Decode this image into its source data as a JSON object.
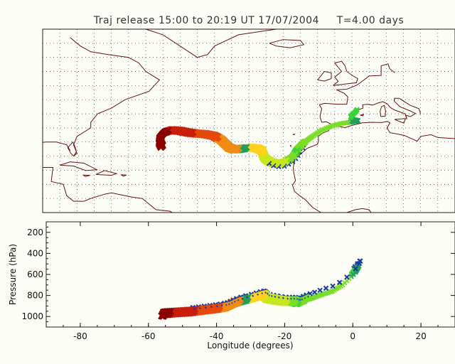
{
  "title": "Traj release 15:00 to 20:19 UT 17/07/2004     T=4.00 days",
  "colors": {
    "frame": "#2a1a1a",
    "grid": "#555555",
    "coast": "#6a1010",
    "cross": "#1a3aa0",
    "background": "#fcfdf6"
  },
  "map": {
    "lon_range": [
      -90,
      30
    ],
    "lat_range": [
      5,
      70
    ],
    "grid_lon_step": 5,
    "grid_lat_step": 5
  },
  "chart_data": {
    "type": "scatter",
    "title": "Traj release 15:00 to 20:19 UT 17/07/2004     T=4.00 days",
    "xlabel": "Longitude  (degrees)",
    "ylabel": "Pressure  (hPa)",
    "xlim": [
      -90,
      30
    ],
    "ylim": [
      1100,
      100
    ],
    "x_ticks": [
      -80,
      -60,
      -40,
      -20,
      0,
      20
    ],
    "y_ticks": [
      200,
      400,
      600,
      800,
      1000
    ],
    "grid": false,
    "trajectory": {
      "description_color_ramp": [
        "#8b0000",
        "#c81e0a",
        "#e64a0a",
        "#f08c14",
        "#ffd21e",
        "#c8e61e",
        "#78dc28",
        "#3cd23c",
        "#22a05a",
        "#208c6a"
      ],
      "points": [
        {
          "lon": 1.5,
          "lat": 41.5,
          "p": 520,
          "c": 7
        },
        {
          "lon": 1.0,
          "lat": 40.6,
          "p": 560,
          "c": 7
        },
        {
          "lon": 0.2,
          "lat": 39.8,
          "p": 580,
          "c": 7
        },
        {
          "lon": -0.4,
          "lat": 38.9,
          "p": 600,
          "c": 7
        },
        {
          "lon": 0.5,
          "lat": 38.0,
          "p": 560,
          "c": 7
        },
        {
          "lon": 1.8,
          "lat": 37.6,
          "p": 520,
          "c": 8
        },
        {
          "lon": 0.8,
          "lat": 37.2,
          "p": 580,
          "c": 8
        },
        {
          "lon": -3.0,
          "lat": 36.6,
          "p": 700,
          "c": 6
        },
        {
          "lon": -6.0,
          "lat": 35.6,
          "p": 760,
          "c": 6
        },
        {
          "lon": -9.0,
          "lat": 34.0,
          "p": 790,
          "c": 6
        },
        {
          "lon": -11.5,
          "lat": 32.0,
          "p": 820,
          "c": 6
        },
        {
          "lon": -13.5,
          "lat": 30.2,
          "p": 840,
          "c": 6
        },
        {
          "lon": -15.0,
          "lat": 28.5,
          "p": 860,
          "c": 6
        },
        {
          "lon": -16.2,
          "lat": 27.0,
          "p": 880,
          "c": 6
        },
        {
          "lon": -16.8,
          "lat": 25.6,
          "p": 880,
          "c": 7
        },
        {
          "lon": -17.6,
          "lat": 24.2,
          "p": 870,
          "c": 6
        },
        {
          "lon": -19.0,
          "lat": 23.1,
          "p": 870,
          "c": 6
        },
        {
          "lon": -20.5,
          "lat": 22.2,
          "p": 870,
          "c": 5
        },
        {
          "lon": -22.5,
          "lat": 22.0,
          "p": 860,
          "c": 5
        },
        {
          "lon": -24.2,
          "lat": 22.6,
          "p": 850,
          "c": 5
        },
        {
          "lon": -25.6,
          "lat": 23.8,
          "p": 840,
          "c": 5
        },
        {
          "lon": -26.2,
          "lat": 25.3,
          "p": 820,
          "c": 5
        },
        {
          "lon": -26.5,
          "lat": 26.6,
          "p": 810,
          "c": 4
        },
        {
          "lon": -28.0,
          "lat": 27.4,
          "p": 820,
          "c": 4
        },
        {
          "lon": -30.0,
          "lat": 27.6,
          "p": 840,
          "c": 4
        },
        {
          "lon": -32.5,
          "lat": 27.2,
          "p": 860,
          "c": 8
        },
        {
          "lon": -34.5,
          "lat": 27.0,
          "p": 880,
          "c": 3
        },
        {
          "lon": -36.0,
          "lat": 27.6,
          "p": 900,
          "c": 3
        },
        {
          "lon": -37.2,
          "lat": 29.0,
          "p": 920,
          "c": 3
        },
        {
          "lon": -38.5,
          "lat": 30.5,
          "p": 930,
          "c": 3
        },
        {
          "lon": -40.5,
          "lat": 31.8,
          "p": 940,
          "c": 2
        },
        {
          "lon": -43.0,
          "lat": 32.4,
          "p": 950,
          "c": 2
        },
        {
          "lon": -45.5,
          "lat": 32.6,
          "p": 960,
          "c": 2
        },
        {
          "lon": -48.0,
          "lat": 33.0,
          "p": 970,
          "c": 1
        },
        {
          "lon": -50.5,
          "lat": 33.6,
          "p": 975,
          "c": 1
        },
        {
          "lon": -53.0,
          "lat": 33.8,
          "p": 980,
          "c": 1
        },
        {
          "lon": -55.0,
          "lat": 33.0,
          "p": 985,
          "c": 0
        },
        {
          "lon": -56.0,
          "lat": 31.5,
          "p": 990,
          "c": 0
        },
        {
          "lon": -56.2,
          "lat": 29.5,
          "p": 995,
          "c": 0
        },
        {
          "lon": -55.6,
          "lat": 28.0,
          "p": 1000,
          "c": 0
        }
      ]
    }
  }
}
